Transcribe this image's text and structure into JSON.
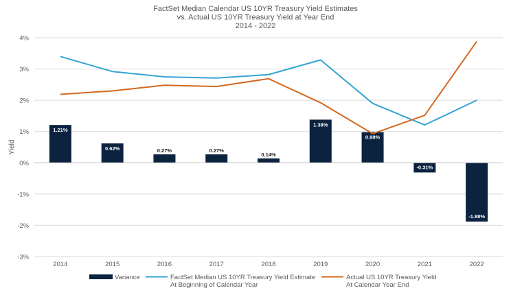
{
  "chart_data": {
    "type": "bar",
    "title": [
      "FactSet Median Calendar US 10YR Treasury Yield Estimates",
      "vs. Actual US 10YR Treasury Yield at Year End",
      "2014 - 2022"
    ],
    "xlabel": "",
    "ylabel": "Yield",
    "ylim": [
      -3,
      4
    ],
    "yticks": [
      4,
      3,
      2,
      1,
      0,
      -1,
      -2,
      -3
    ],
    "ytick_labels": [
      "4%",
      "3%",
      "2%",
      "1%",
      "0%",
      "-1%",
      "-2%",
      "-3%"
    ],
    "categories": [
      "2014",
      "2015",
      "2016",
      "2017",
      "2018",
      "2019",
      "2020",
      "2021",
      "2022"
    ],
    "grid": true,
    "legend_position": "bottom",
    "series": [
      {
        "name": "Variance",
        "type": "bar",
        "color": "#0c2340",
        "values": [
          1.21,
          0.62,
          0.27,
          0.27,
          0.14,
          1.38,
          0.98,
          -0.31,
          -1.88
        ],
        "labels": [
          "1.21%",
          "0.62%",
          "0.27%",
          "0.27%",
          "0.14%",
          "1.38%",
          "0.98%",
          "-0.31%",
          "-1.88%"
        ]
      },
      {
        "name": [
          "FactSet Median US 10YR Treasury Yield Estimate",
          "At Beginning of Calendar Year"
        ],
        "type": "line",
        "color": "#33a4d4",
        "values": [
          3.4,
          2.92,
          2.75,
          2.71,
          2.82,
          3.29,
          1.9,
          1.21,
          2.0
        ]
      },
      {
        "name": [
          "Actual US 10YR Treasury Yield",
          "At Calendar Year End"
        ],
        "type": "line",
        "color": "#d2691e",
        "values": [
          2.19,
          2.3,
          2.48,
          2.44,
          2.69,
          1.92,
          0.93,
          1.52,
          3.88
        ]
      }
    ]
  }
}
